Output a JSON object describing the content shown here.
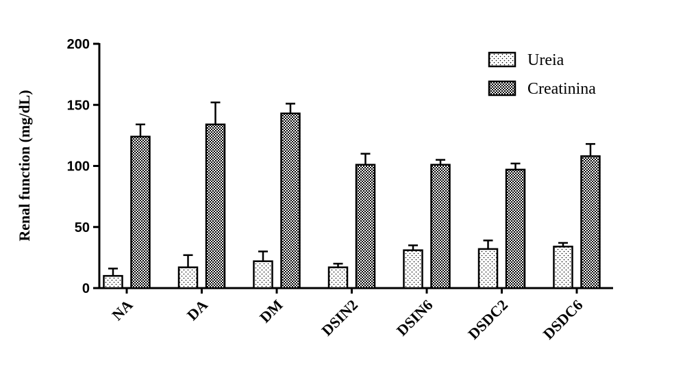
{
  "chart_data": {
    "type": "bar",
    "title": "",
    "xlabel": "",
    "ylabel": "Renal function (mg/dL)",
    "ylim": [
      0,
      200
    ],
    "yticks": [
      0,
      50,
      100,
      150,
      200
    ],
    "grid": false,
    "legend_position": "top-right",
    "categories": [
      "NA",
      "DA",
      "DM",
      "DSIN2",
      "DSIN6",
      "DSDC2",
      "DSDC6"
    ],
    "series": [
      {
        "name": "Ureia",
        "pattern": "dots",
        "values": [
          10,
          17,
          22,
          17,
          31,
          32,
          34
        ],
        "errors": [
          6,
          10,
          8,
          3,
          4,
          7,
          3
        ]
      },
      {
        "name": "Creatinina",
        "pattern": "checker",
        "values": [
          124,
          134,
          143,
          101,
          101,
          97,
          108
        ],
        "errors": [
          10,
          18,
          8,
          9,
          4,
          5,
          10
        ]
      }
    ]
  },
  "colors": {
    "axis": "#000000",
    "bar_fill": "#ffffff",
    "checker_dark": "#000000"
  }
}
